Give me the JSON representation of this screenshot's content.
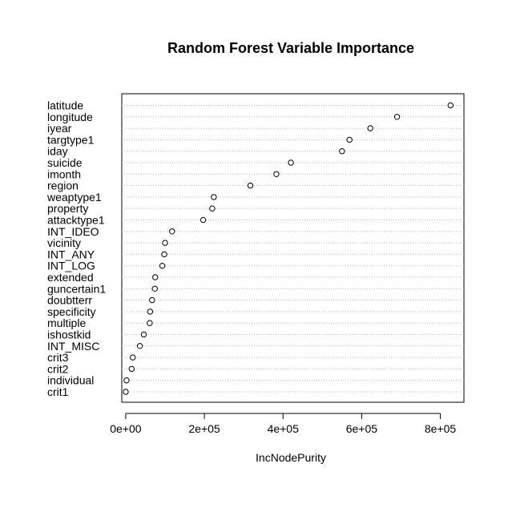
{
  "chart_data": {
    "type": "scatter",
    "style": "dotchart",
    "title": "Random Forest Variable Importance",
    "xlabel": "IncNodePurity",
    "ylabel": "",
    "xlim": [
      -10000,
      860000
    ],
    "grid": "dotted horizontal lines per variable",
    "x_ticks": [
      0,
      200000,
      400000,
      600000,
      800000
    ],
    "x_tick_labels": [
      "0e+00",
      "2e+05",
      "4e+05",
      "6e+05",
      "8e+05"
    ],
    "variables": [
      {
        "name": "latitude",
        "value": 826000
      },
      {
        "name": "longitude",
        "value": 690000
      },
      {
        "name": "iyear",
        "value": 622000
      },
      {
        "name": "targtype1",
        "value": 569000
      },
      {
        "name": "iday",
        "value": 550000
      },
      {
        "name": "suicide",
        "value": 420000
      },
      {
        "name": "imonth",
        "value": 383000
      },
      {
        "name": "region",
        "value": 317000
      },
      {
        "name": "weaptype1",
        "value": 224000
      },
      {
        "name": "property",
        "value": 220000
      },
      {
        "name": "attacktype1",
        "value": 197000
      },
      {
        "name": "INT_IDEO",
        "value": 118000
      },
      {
        "name": "vicinity",
        "value": 100000
      },
      {
        "name": "INT_ANY",
        "value": 98000
      },
      {
        "name": "INT_LOG",
        "value": 93000
      },
      {
        "name": "extended",
        "value": 75000
      },
      {
        "name": "guncertain1",
        "value": 74000
      },
      {
        "name": "doubtterr",
        "value": 67000
      },
      {
        "name": "specificity",
        "value": 62000
      },
      {
        "name": "multiple",
        "value": 61000
      },
      {
        "name": "ishostkid",
        "value": 46000
      },
      {
        "name": "INT_MISC",
        "value": 36000
      },
      {
        "name": "crit3",
        "value": 18000
      },
      {
        "name": "crit2",
        "value": 15000
      },
      {
        "name": "individual",
        "value": 2000
      },
      {
        "name": "crit1",
        "value": 0
      }
    ]
  }
}
